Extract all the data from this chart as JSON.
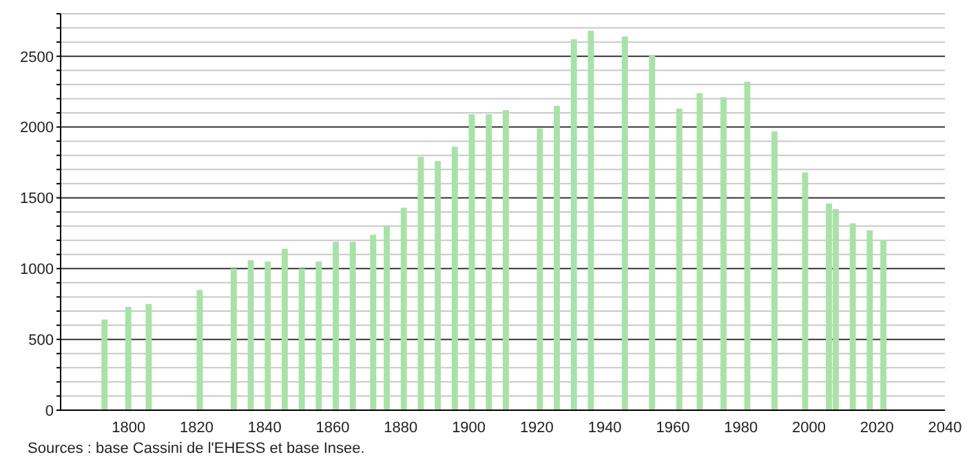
{
  "chart_data": {
    "type": "bar",
    "x": [
      1793,
      1800,
      1806,
      1821,
      1831,
      1836,
      1841,
      1846,
      1851,
      1856,
      1861,
      1866,
      1872,
      1876,
      1881,
      1886,
      1891,
      1896,
      1901,
      1906,
      1911,
      1921,
      1926,
      1931,
      1936,
      1946,
      1954,
      1962,
      1968,
      1975,
      1982,
      1990,
      1999,
      2006,
      2008,
      2013,
      2018,
      2022
    ],
    "values": [
      640,
      730,
      750,
      850,
      1000,
      1060,
      1050,
      1140,
      1000,
      1050,
      1190,
      1190,
      1240,
      1300,
      1430,
      1790,
      1760,
      1860,
      2090,
      2090,
      2120,
      1990,
      2150,
      2620,
      2680,
      2640,
      2510,
      2130,
      2240,
      2210,
      2320,
      1970,
      1680,
      1460,
      1420,
      1320,
      1270,
      1200
    ],
    "color": "#a8e2a8",
    "xlim": [
      1780,
      2040
    ],
    "xticks": [
      1800,
      1820,
      1840,
      1860,
      1880,
      1900,
      1920,
      1940,
      1960,
      1980,
      2000,
      2020,
      2040
    ],
    "ylim": [
      0,
      2800
    ],
    "yticks": [
      0,
      {
        "value": 100,
        "label": null
      },
      {
        "value": 200,
        "label": null
      },
      {
        "value": 300,
        "label": null
      },
      {
        "value": 400,
        "label": null
      },
      500,
      {
        "value": 600,
        "label": null
      },
      {
        "value": 700,
        "label": null
      },
      {
        "value": 800,
        "label": null
      },
      {
        "value": 900,
        "label": null
      },
      1000,
      {
        "value": 1100,
        "label": null
      },
      {
        "value": 1200,
        "label": null
      },
      {
        "value": 1300,
        "label": null
      },
      {
        "value": 1400,
        "label": null
      },
      1500,
      {
        "value": 1600,
        "label": null
      },
      {
        "value": 1700,
        "label": null
      },
      {
        "value": 1800,
        "label": null
      },
      {
        "value": 1900,
        "label": null
      },
      2000,
      {
        "value": 2100,
        "label": null
      },
      {
        "value": 2200,
        "label": null
      },
      {
        "value": 2300,
        "label": null
      },
      {
        "value": 2400,
        "label": null
      },
      2500,
      {
        "value": 2600,
        "label": null
      },
      {
        "value": 2700,
        "label": null
      },
      {
        "value": 2800,
        "label": null
      }
    ],
    "grid": "y",
    "annotations": [
      "Sources : base Cassini de l'EHESS et base Insee."
    ]
  }
}
